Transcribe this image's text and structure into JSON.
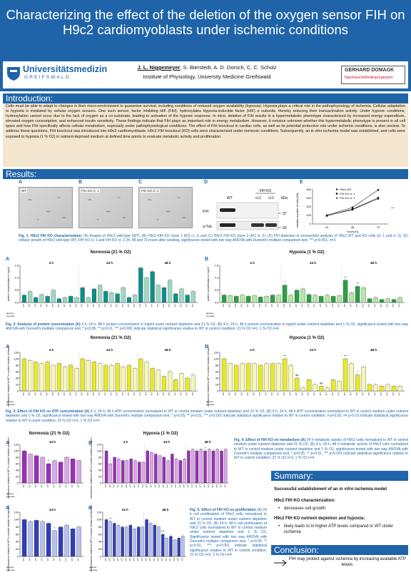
{
  "header": {
    "title": "Characterizing the effect of the deletion of the oxygen sensor FIH on H9c2 cardiomyoblasts under ischemic conditions",
    "presenting_author": "J. L. Niggemeyer",
    "coauthors": ", S. Bierstedt, A. D. Dorsch, C. C. Scholz",
    "affiliation": "Institute of Physiology, University Medicine Greifswald",
    "logo_left_name": "Universitätsmedizin",
    "logo_left_city": "GREIFSWALD",
    "logo_right_name": "GERHARD DOMAGK",
    "logo_right_sub": "Nachwuchsförderprogramm"
  },
  "sections": {
    "introduction": "Introduction:",
    "results": "Results:",
    "summary": "Summary:",
    "conclusion": "Conclusion:"
  },
  "introduction_text": "Cells must be able to adapt to changes in their micro-environment to guarantee survival, including conditions of reduced oxygen availability (hypoxia). Hypoxia plays a critical role in the pathophysiology of ischemia. Cellular adaptation to hypoxia is mediated by cellular oxygen sensors. One such sensor, factor inhibiting HIF (FIH), hydroxylates Hypoxia-inducible factor (HIF) α subunits, thereby reducing their transactivation activity. Under hypoxic conditions, hydroxylation cannot occur due to the lack of oxygen as a co-substrate, leading to activation of the hypoxic response. In mice, deletion of FIH results in a hypermetabolic phenotype characterized by increased energy expenditure, elevated oxygen consumption, and enhanced insulin sensitivity. These findings indicate that FIH plays an important role in energy metabolism. However, it remains unknown whether this hypermetabolic phenotype is present in all cell types and how FIH specifically affects cellular metabolism, especially under pathophysiological conditions. The effect of FIH knockout in cardiac cells, as well as its potential protective role under ischemic conditions, is also unclear. To address these questions, FIH knockout was introduced into H9c2 cardiomyoblasts. H9c2 FIH knockout (KO) cells were characterized under normoxic conditions. Subsequently, an in vitro ischemia model was established, and cells were exposed to hypoxia (1 % O2) in nutrient-deprived medium at defined time points to evaluate metabolic activity and proliferation.",
  "fig1": {
    "panels": [
      "A",
      "B",
      "C",
      "D",
      "E"
    ],
    "micro_labels": [
      "WT",
      "FIH KO cl. 1",
      "FIH KO cl. 2"
    ],
    "blot": {
      "lane_labels": [
        "WT",
        "cl.1",
        "cl.2"
      ],
      "group_label": "FIH KO",
      "kda_label": "kDa",
      "rows": [
        "FIH",
        "α-Tub"
      ],
      "kda": [
        "37",
        "50"
      ]
    },
    "growth": {
      "ylabel": "relative number of cells [%]",
      "xlabel": "hours [h]",
      "legend": [
        "H9c2 WT",
        "FIH KO cl. 1",
        "FIH KO cl. 2"
      ],
      "yticks": [
        "400",
        "300",
        "200",
        "100",
        "0"
      ],
      "xticks": [
        "24",
        "48",
        "72"
      ]
    },
    "caption_bold": "Fig. 1: H9c2  FIH KO characterization:",
    "caption": " (A) Images of H9c2 wild-type (WT), (B) H9c2 FIH KO clone 1 (KO cl. 1) and (C) H9c2 FIH KO clone 2 (KO cl. 2). (D) FIH detection in immunoblot analysis of H9c2 WT and KO cells (cl. 1 and cl. 2). (E) cellular growth of H9c2 wild-type WT, FIH KO cl. 1 and FIH KO cl. 2 24, 48 and 72 hours after seeding, significance tested with two way ANOVA with Dunnett's multiple comparison test; *** p<0.001, n=3"
  },
  "fig2": {
    "left_title": "Normoxia (21 % O2)",
    "right_title": "Hypoxia (1 % O2)",
    "ylabel": "protein concentration in mg/ml",
    "yticks": [
      "1.5",
      "1.0",
      "0.5",
      "0.0"
    ],
    "timepoints": [
      "4 h",
      "24 h",
      "48 h"
    ],
    "group_label": "FIH KO",
    "clone_labels": [
      "WT",
      "cl. 1",
      "cl. 2"
    ],
    "row_labels": [
      "glucose",
      "pyruvate"
    ],
    "caption_bold": "Fig. 2: Analysis of protein concentration (A)",
    "caption": " 4 h, 24 h, 48 h protein concentration in mg/ml under nutrient depletion and 21 % O2, (B) 4 h, 24 h, 48 h protein concentration in mg/ml under nutrient depletion and 1 % O2, significance tested with two way ANOVA with Dunnett's multiple comparison test; * p<0.05, ** p<0.01, *** p<0.001 indicate statistical significance relative to WT in control condition; 21 % O2 n=1, 1 % O2 n=4"
  },
  "fig3": {
    "left_title": "Normoxia (21 % O2)",
    "right_title": "Hypoxia (1 % O2)",
    "ylabel": "luminescence relative to WT in control medium at each time point",
    "yticks": [
      "120",
      "100",
      "80",
      "60",
      "40",
      "20",
      "0"
    ],
    "timepoints": [
      "4 h",
      "24 h",
      "48 h"
    ],
    "caption_bold": "Fig. 3: Effect of FIH KO on ATP concentration (A)",
    "caption": " 4 h, 24 h, 48 h ATP concentration normalized to WT in control medium under nutrient depletion and 21 % O2, (B) 4 h, 24 h, 48 h ATP concentration normalized to WT in control medium under nutrient depletion and 1 % O2, significance tested with two way ANOVA with Dunnett's multiple comparison test; * p<0.05, ** p<0.01, *** p<0.001 indicate statistical significance relative to WT in control condition, # p<0.05, ## p<0.01 indicate statistical significance relative to WT in each condition, 21 % O2 n=1, 1 % O2 n=4"
  },
  "fig4": {
    "left_title": "Normoxia (21 % O2)",
    "right_title": "Hypoxia (1 % O2)",
    "ylabel": "luminescence relative to WT in control medium at each time point",
    "yticks": [
      "120",
      "100",
      "80",
      "60",
      "40",
      "20",
      "0"
    ],
    "timepoints_left": [
      "24 h"
    ],
    "timepoints_right": [
      "4 h",
      "24 h",
      "48 h"
    ],
    "caption_bold": "Fig. 4: Effect of FIH KO on metabolism (A)",
    "caption": " 24 h metabolic activity of H9c2 cells normalized to WT in control medium under nutrient depletion and 21 % O2, (B) 4 h, 24 h, 48 h metabolic activity of H9c2 cells normalized to WT in control medium under nutrient depletion and 1 % O2, significance tested with two way ANOVA with Dunnett's multiple comparison test; * p<0.05, ** p<0.01, *** p<0.001 indicate statistical significance relative to WT in control condition, 21 % O2 n=3, 1 % O2 n=4"
  },
  "fig5": {
    "ylabel": "luminescence relative to WT in control medium at each time point",
    "yticks": [
      "120",
      "100",
      "80",
      "60",
      "40",
      "20",
      "0"
    ],
    "timepoints_left": [
      "24 h"
    ],
    "timepoints_right": [
      "24 h",
      "48 h"
    ],
    "caption_bold": "Fig. 5: Effect of FIH KO on proliferation",
    "caption": " (A) 24 h cell proliferation of H9c2 cells normalized to WT in control medium under nutrient depletion and 21 % O2, (B) 24 h, 48 h cell proliferation of H9c2 cells normalized to WT in control medium under nutrient depletion and 1 % O2, Significance tested with two way ANOVA with Dunnett's multiple comparison test; * p<0.05, ** p<0.01, *** p<0.001 indicate statistical significance relative to WT in control condition, 21 % O2 n=3, 1 % O2 n=4"
  },
  "summary": {
    "headline_a": "Successful establishment of an ",
    "headline_b": "in vitro",
    "headline_c": " ischemia model",
    "item1_title": "H9c2 FIH KO characterization:",
    "item1_bullet": "decreases cell growth",
    "item2_title": "H9c2 FIH KO nutrient depletion and hypoxia:",
    "item2_bullet": "likely leads to in higher ATP levels compared to WT under ischemia"
  },
  "conclusion_text": "FIH may protect against ischemia by increasing available ATP levels.",
  "colors": {
    "brand_blue": "#1f64a8",
    "intro_bg": "#f5e6cf",
    "teal": "#0e8f8a",
    "mint": "#9fd9c0",
    "green": "#2aa043",
    "lightgreen": "#b9e4a8",
    "yellow": "#e8e82a",
    "paleyellow": "#f6f6b8",
    "purple": "#9a2fb8",
    "lightpurple": "#d8a8e6",
    "blue": "#2f3fb8",
    "lightblue": "#b8c0ec"
  },
  "chart_data": [
    {
      "id": "fig1e",
      "type": "line",
      "x": [
        24,
        48,
        72
      ],
      "series": [
        {
          "name": "H9c2 WT",
          "values": [
            100,
            190,
            390
          ]
        },
        {
          "name": "FIH KO cl. 1",
          "values": [
            95,
            170,
            300
          ]
        },
        {
          "name": "FIH KO cl. 2",
          "values": [
            95,
            165,
            290
          ]
        }
      ],
      "ylim": [
        0,
        400
      ]
    },
    {
      "id": "fig2a",
      "type": "bar",
      "ylim": [
        0,
        1.5
      ],
      "values": [
        0.3,
        0.45,
        0.2,
        0.32,
        0.25,
        0.5,
        0.15,
        0.2,
        0.25,
        0.2,
        0.6,
        0.2,
        0.55,
        0.7,
        0.45,
        0.4,
        0.35,
        0.6,
        0.2,
        0.3,
        1.4,
        1.0,
        1.25,
        0.7,
        0.6,
        0.9,
        0.35,
        0.55,
        0.3,
        0.45
      ]
    },
    {
      "id": "fig2b",
      "type": "bar",
      "ylim": [
        0,
        1.5
      ],
      "values": [
        0.3,
        0.28,
        0.25,
        0.3,
        0.25,
        0.28,
        0.22,
        0.25,
        0.3,
        0.3,
        0.7,
        0.3,
        0.5,
        0.55,
        0.32,
        0.3,
        0.25,
        0.3,
        0.25,
        0.28,
        0.9,
        0.4,
        0.65,
        0.6,
        0.15,
        0.2,
        0.12,
        0.15,
        0.12,
        0.2
      ]
    },
    {
      "id": "fig3a",
      "type": "bar",
      "ylim": [
        0,
        120
      ],
      "values": [
        100,
        95,
        90,
        85,
        90,
        80,
        85,
        75,
        80,
        70,
        100,
        95,
        90,
        85,
        80,
        80,
        85,
        75,
        80,
        70,
        100,
        90,
        70,
        65,
        45,
        60,
        35,
        55,
        40,
        50
      ]
    },
    {
      "id": "fig3b",
      "type": "bar",
      "ylim": [
        0,
        120
      ],
      "values": [
        100,
        85,
        80,
        85,
        85,
        85,
        80,
        85,
        85,
        85,
        100,
        80,
        40,
        10,
        35,
        20,
        15,
        10,
        35,
        30,
        100,
        85,
        50,
        75,
        20,
        20,
        15,
        20,
        15,
        15
      ]
    },
    {
      "id": "fig4a",
      "type": "bar",
      "ylim": [
        0,
        120
      ],
      "values": [
        100,
        90,
        85,
        80,
        60,
        70,
        65,
        80,
        75,
        70
      ]
    },
    {
      "id": "fig4b",
      "type": "bar",
      "ylim": [
        0,
        120
      ],
      "values": [
        100,
        60,
        80,
        75,
        70,
        70,
        75,
        70,
        65,
        65,
        100,
        95,
        90,
        85,
        80,
        70,
        90,
        75,
        70,
        75,
        100,
        105,
        100,
        105,
        100,
        105,
        100,
        105,
        100,
        105
      ]
    },
    {
      "id": "fig5a",
      "type": "bar",
      "ylim": [
        0,
        120
      ],
      "values": [
        100,
        95,
        98,
        95,
        90,
        70,
        80,
        85,
        75,
        80
      ]
    },
    {
      "id": "fig5b",
      "type": "bar",
      "ylim": [
        0,
        120
      ],
      "values": [
        100,
        95,
        90,
        85,
        80,
        80,
        85,
        75,
        80,
        80,
        100,
        90,
        85,
        80,
        60,
        50,
        55,
        45,
        50,
        55
      ]
    }
  ]
}
